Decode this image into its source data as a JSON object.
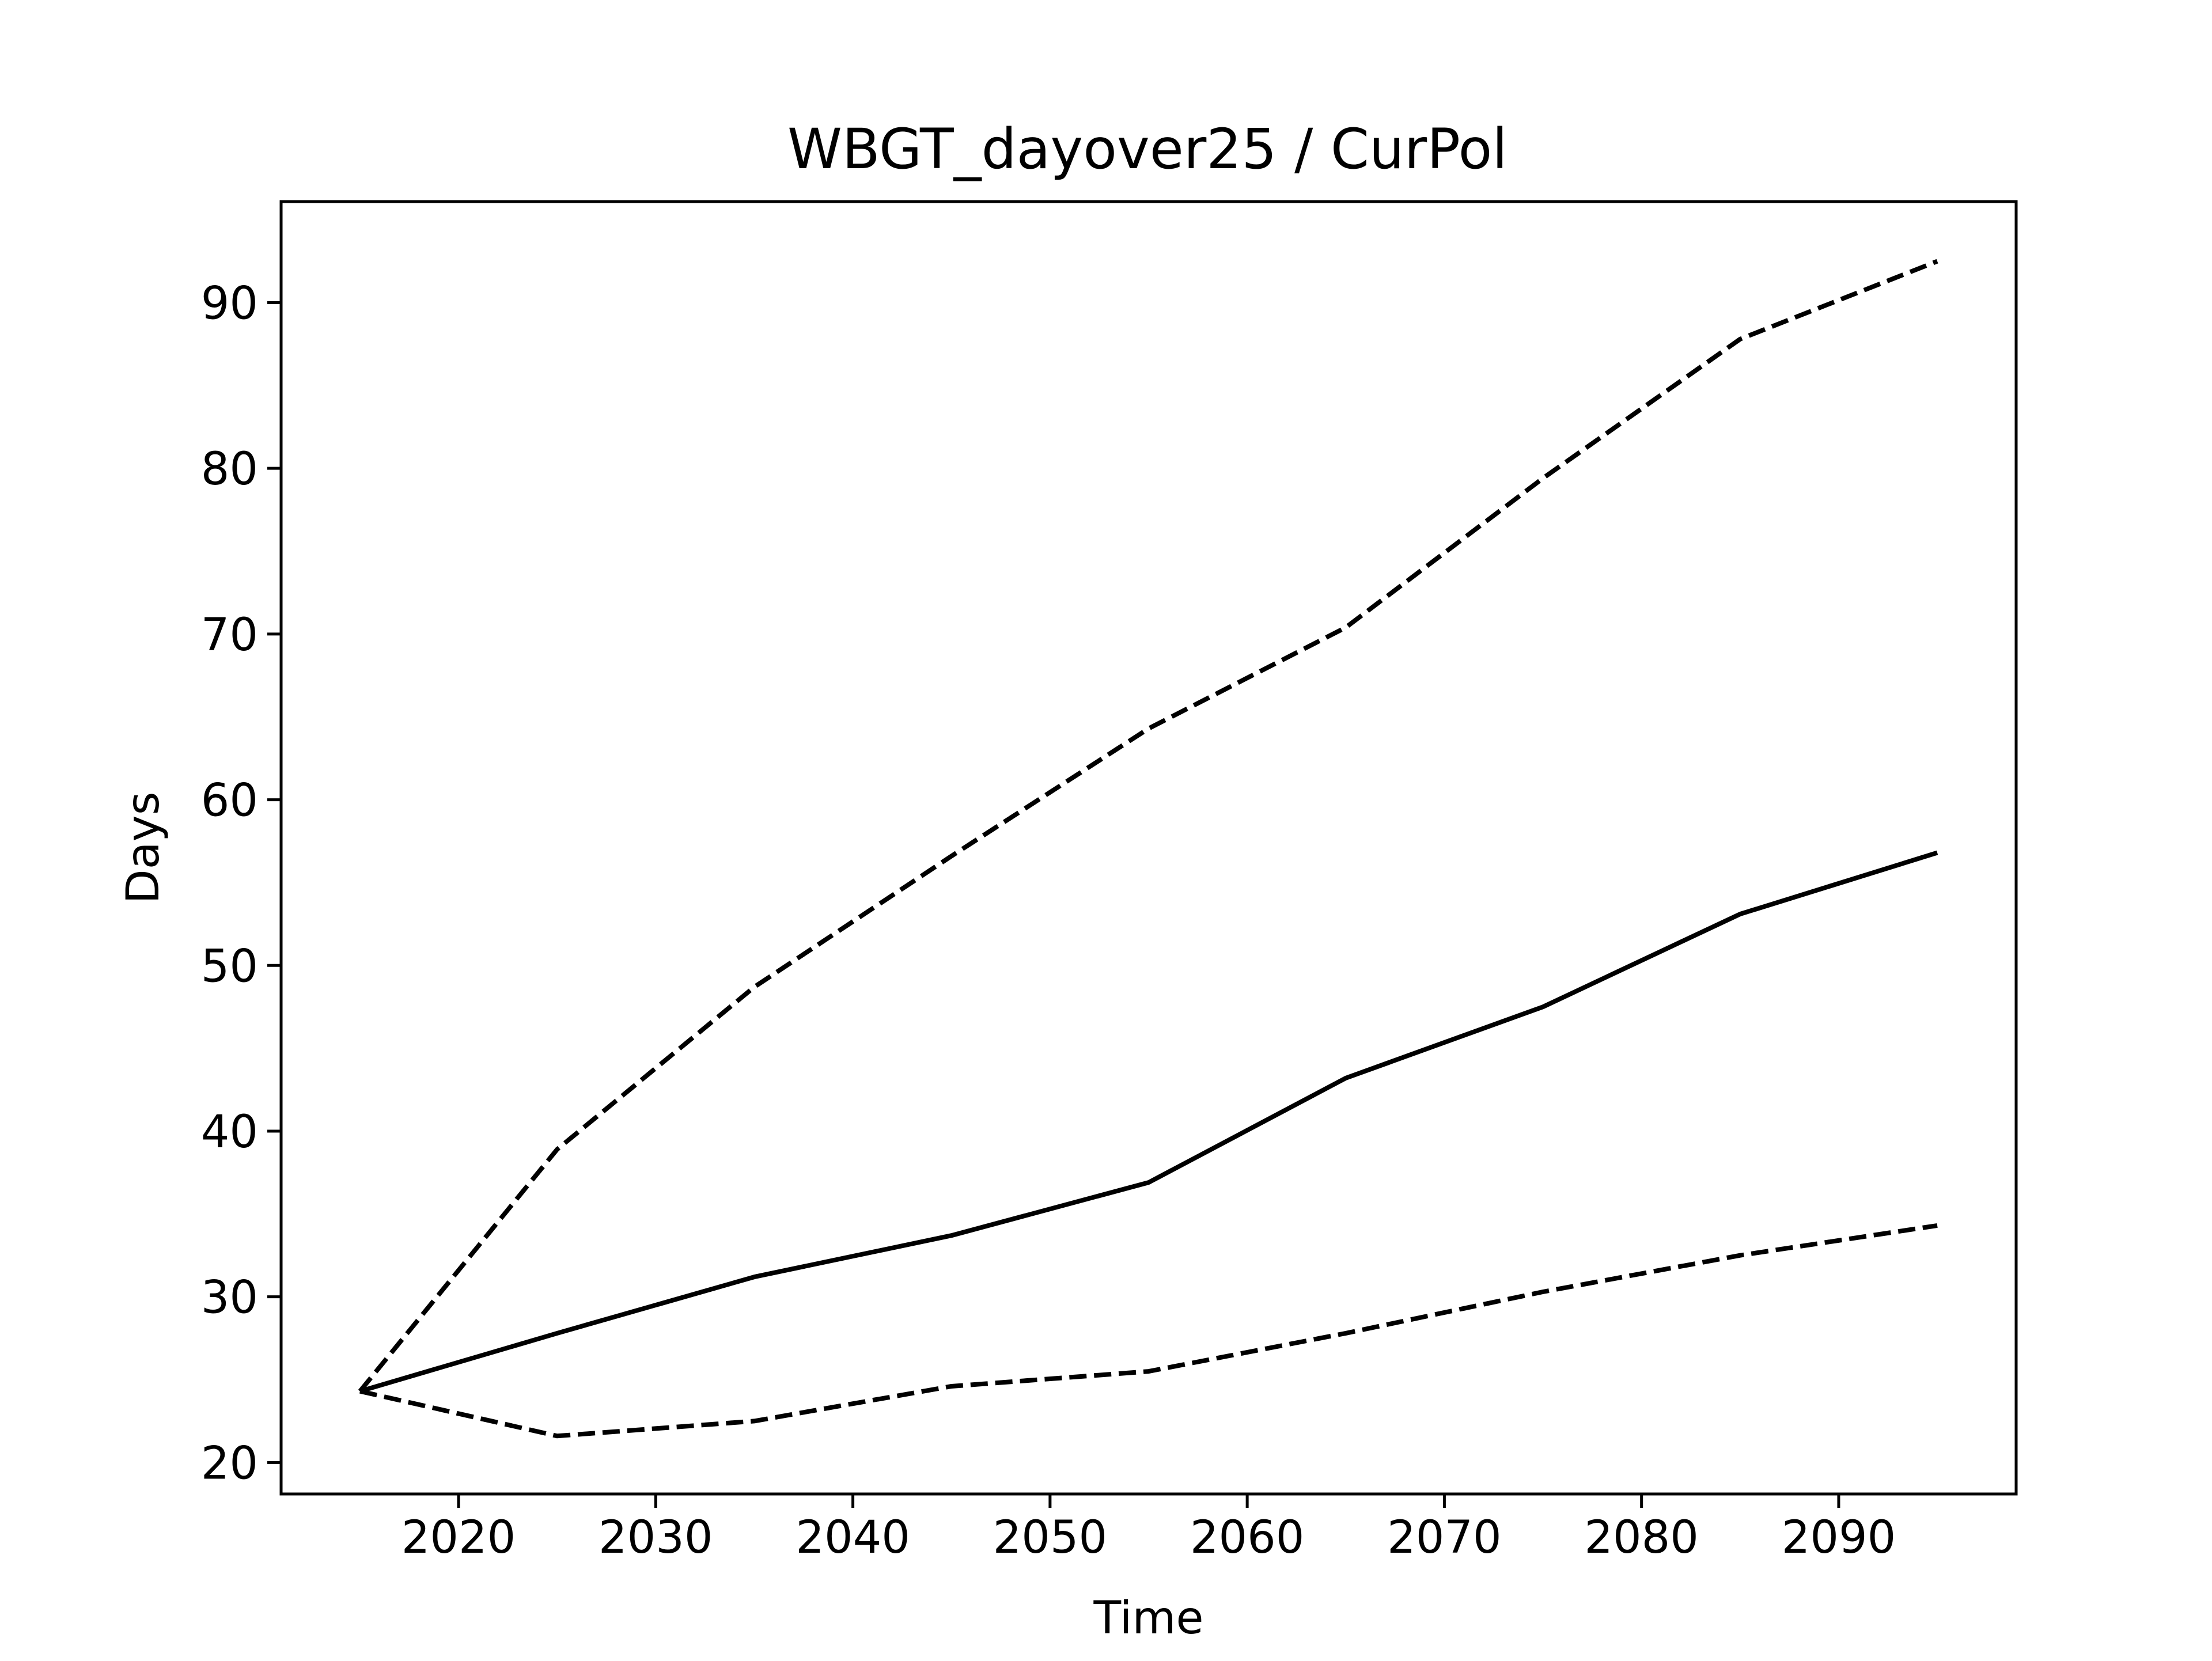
{
  "chart_data": {
    "type": "line",
    "title": "WBGT_dayover25 / CurPol",
    "xlabel": "Time",
    "ylabel": "Days",
    "xlim": [
      2011,
      2099
    ],
    "ylim": [
      18.1,
      96.1
    ],
    "xticks": [
      2020,
      2030,
      2040,
      2050,
      2060,
      2070,
      2080,
      2090
    ],
    "yticks": [
      20,
      30,
      40,
      50,
      60,
      70,
      80,
      90
    ],
    "grid": false,
    "legend": "none",
    "x": [
      2015,
      2025,
      2035,
      2045,
      2055,
      2065,
      2075,
      2085,
      2095
    ],
    "series": [
      {
        "line_style": "solid",
        "color": "#000000",
        "values": [
          24.3,
          27.8,
          31.2,
          33.7,
          36.9,
          43.2,
          47.5,
          53.1,
          56.8
        ]
      },
      {
        "line_style": "dashed",
        "color": "#000000",
        "values": [
          24.3,
          38.9,
          48.7,
          56.6,
          64.3,
          70.4,
          79.4,
          87.8,
          92.5
        ]
      },
      {
        "line_style": "dashed",
        "color": "#000000",
        "values": [
          24.3,
          21.6,
          22.5,
          24.6,
          25.5,
          27.8,
          30.3,
          32.5,
          34.3
        ]
      }
    ]
  }
}
